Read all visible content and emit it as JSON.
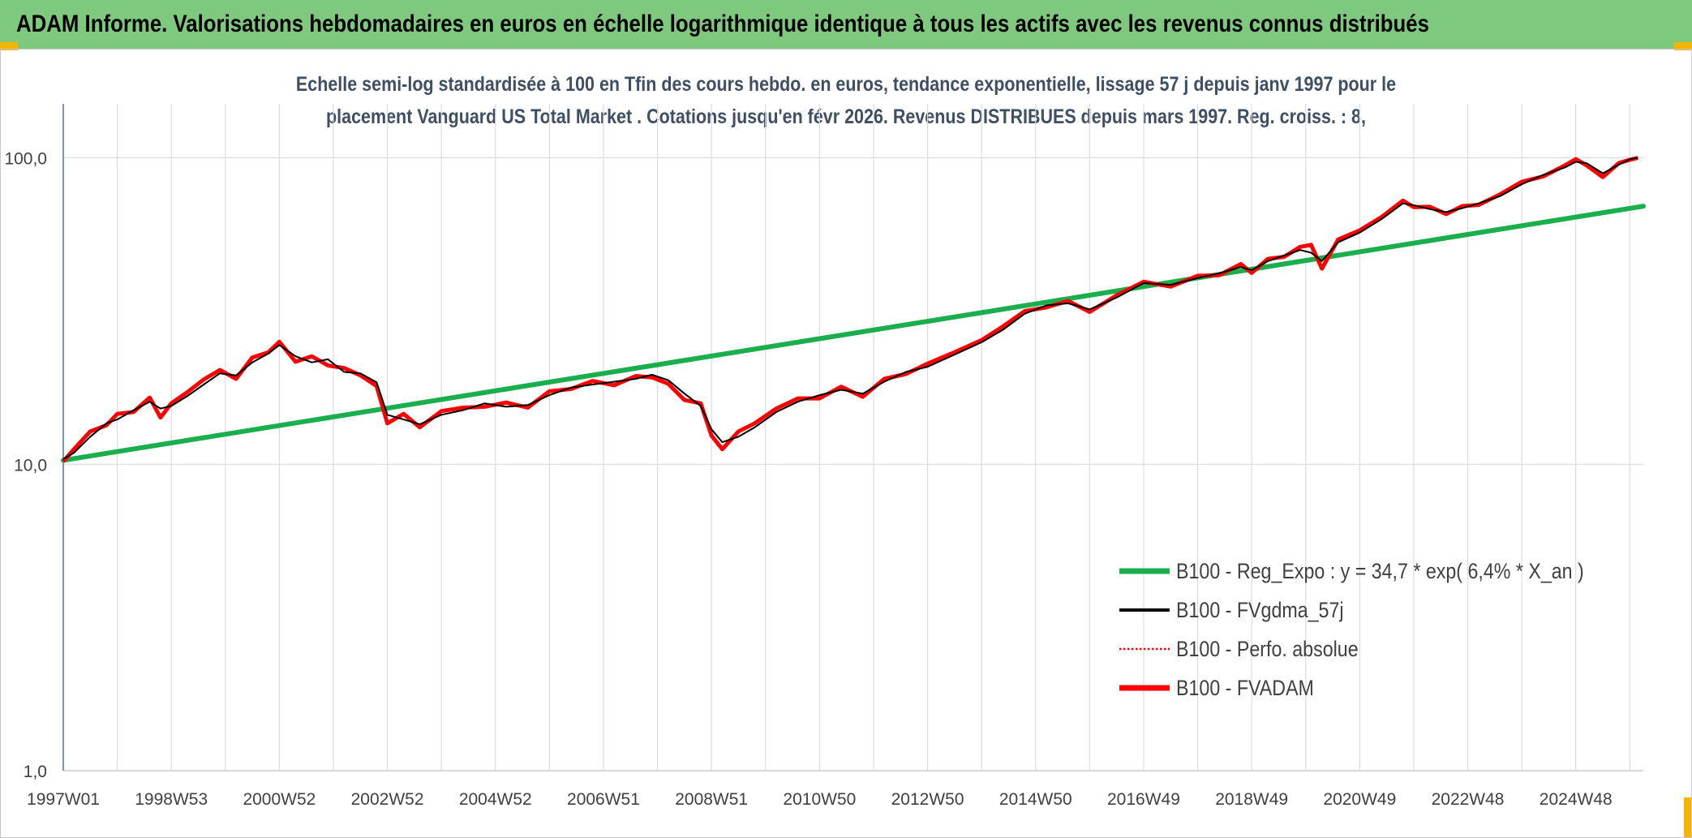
{
  "banner": {
    "title": "ADAM Informe. Valorisations hebdomadaires en euros en échelle logarithmique identique à tous les actifs avec les revenus connus distribués"
  },
  "colors": {
    "banner_bg": "#7fc97f",
    "corner_accent": "#f5b400",
    "subtitle_text": "#3f4f63",
    "regression": "#1aae4c",
    "fvgdma": "#000000",
    "perfo": "#ff0000",
    "fvadam": "#ff0000",
    "grid": "#d9dde3",
    "y_axis_line": "#4472c4"
  },
  "chart_data": {
    "type": "line",
    "title_lines": [
      "Echelle semi-log standardisée à 100 en Tfin des cours hebdo. en euros, tendance exponentielle, lissage 57 j depuis janv 1997 pour le",
      "placement Vanguard US Total Market . Cotations jusqu'en févr 2026. Revenus DISTRIBUES depuis mars 1997. Reg. croiss. : 8,"
    ],
    "y_scale": "log",
    "ylim": [
      1,
      150
    ],
    "y_ticks": [
      {
        "value": 1,
        "label": "1,0"
      },
      {
        "value": 10,
        "label": "10,0"
      },
      {
        "value": 100,
        "label": "100,0"
      }
    ],
    "xlim": [
      1997.0,
      2026.25
    ],
    "x_ticks": [
      {
        "value": 1997.0,
        "label": "1997W01"
      },
      {
        "value": 1999.0,
        "label": "1998W53"
      },
      {
        "value": 2001.0,
        "label": "2000W52"
      },
      {
        "value": 2003.0,
        "label": "2002W52"
      },
      {
        "value": 2005.0,
        "label": "2004W52"
      },
      {
        "value": 2007.0,
        "label": "2006W51"
      },
      {
        "value": 2009.0,
        "label": "2008W51"
      },
      {
        "value": 2011.0,
        "label": "2010W50"
      },
      {
        "value": 2013.0,
        "label": "2012W50"
      },
      {
        "value": 2015.0,
        "label": "2014W50"
      },
      {
        "value": 2017.0,
        "label": "2016W49"
      },
      {
        "value": 2019.0,
        "label": "2018W49"
      },
      {
        "value": 2021.0,
        "label": "2020W49"
      },
      {
        "value": 2023.0,
        "label": "2022W48"
      },
      {
        "value": 2025.0,
        "label": "2024W48"
      }
    ],
    "minor_grid_step_years": 1,
    "legend_placement": "lower-right",
    "series": [
      {
        "name": "B100 - Reg_Expo : y = 34,7 * exp( 6,4% *  X_an )",
        "key": "reg",
        "style": "line",
        "x": [
          1997.0,
          2026.25
        ],
        "y": [
          10.3,
          69.5
        ]
      },
      {
        "name": "B100 - FVgdma_57j",
        "key": "fvgdma",
        "style": "line",
        "x": [
          1997.0,
          1997.2,
          1997.5,
          1997.8,
          1998.0,
          1998.3,
          1998.6,
          1998.8,
          1999.0,
          1999.3,
          1999.6,
          1999.9,
          2000.2,
          2000.5,
          2000.8,
          2001.0,
          2001.3,
          2001.6,
          2001.9,
          2002.2,
          2002.5,
          2002.8,
          2003.0,
          2003.3,
          2003.6,
          2004.0,
          2004.4,
          2004.8,
          2005.2,
          2005.6,
          2006.0,
          2006.4,
          2006.8,
          2007.2,
          2007.6,
          2007.9,
          2008.2,
          2008.5,
          2008.8,
          2009.0,
          2009.2,
          2009.5,
          2009.8,
          2010.2,
          2010.6,
          2011.0,
          2011.4,
          2011.8,
          2012.2,
          2012.6,
          2013.0,
          2013.5,
          2014.0,
          2014.4,
          2014.8,
          2015.2,
          2015.6,
          2016.0,
          2016.5,
          2017.0,
          2017.5,
          2018.0,
          2018.4,
          2018.8,
          2019.0,
          2019.3,
          2019.6,
          2019.9,
          2020.1,
          2020.3,
          2020.6,
          2021.0,
          2021.4,
          2021.8,
          2022.0,
          2022.3,
          2022.6,
          2022.9,
          2023.2,
          2023.6,
          2024.0,
          2024.4,
          2024.8,
          2025.0,
          2025.2,
          2025.5,
          2025.8,
          2026.0,
          2026.15
        ],
        "y": [
          10.4,
          10.9,
          12.3,
          13.6,
          14.0,
          15.0,
          16.0,
          15.2,
          15.5,
          16.7,
          18.2,
          19.8,
          19.5,
          21.5,
          23.0,
          24.5,
          22.5,
          21.5,
          22.0,
          20.0,
          19.8,
          18.5,
          14.5,
          14.0,
          13.5,
          14.5,
          15.0,
          15.8,
          15.4,
          15.6,
          16.8,
          17.8,
          18.2,
          18.6,
          19.0,
          19.6,
          18.8,
          17.0,
          15.5,
          13.0,
          11.8,
          12.3,
          13.2,
          14.8,
          16.0,
          16.8,
          17.5,
          17.0,
          18.6,
          20.0,
          20.8,
          22.8,
          25.0,
          27.5,
          31.0,
          33.0,
          33.5,
          32.0,
          35.0,
          39.0,
          38.5,
          40.5,
          42.0,
          44.0,
          43.0,
          46.0,
          48.0,
          50.0,
          49.0,
          46.0,
          53.0,
          57.0,
          63.0,
          71.0,
          70.0,
          68.0,
          66.5,
          68.5,
          71.0,
          75.0,
          82.0,
          88.0,
          93.0,
          97.0,
          96.0,
          89.0,
          95.0,
          99.0,
          100.0
        ]
      },
      {
        "name": "B100 - Perfo. absolue",
        "key": "perfo",
        "style": "dotted",
        "x": [
          1997.0,
          1997.2,
          1997.5,
          1997.8,
          1998.0,
          1998.3,
          1998.6,
          1998.8,
          1999.0,
          1999.3,
          1999.6,
          1999.9,
          2000.2,
          2000.5,
          2000.8,
          2001.0,
          2001.3,
          2001.6,
          2001.9,
          2002.2,
          2002.5,
          2002.8,
          2003.0,
          2003.3,
          2003.6,
          2004.0,
          2004.4,
          2004.8,
          2005.2,
          2005.6,
          2006.0,
          2006.4,
          2006.8,
          2007.2,
          2007.6,
          2007.9,
          2008.2,
          2008.5,
          2008.8,
          2009.0,
          2009.2,
          2009.5,
          2009.8,
          2010.2,
          2010.6,
          2011.0,
          2011.4,
          2011.8,
          2012.2,
          2012.6,
          2013.0,
          2013.5,
          2014.0,
          2014.4,
          2014.8,
          2015.2,
          2015.6,
          2016.0,
          2016.5,
          2017.0,
          2017.5,
          2018.0,
          2018.4,
          2018.8,
          2019.0,
          2019.3,
          2019.6,
          2019.9,
          2020.1,
          2020.3,
          2020.6,
          2021.0,
          2021.4,
          2021.8,
          2022.0,
          2022.3,
          2022.6,
          2022.9,
          2023.2,
          2023.6,
          2024.0,
          2024.4,
          2024.8,
          2025.0,
          2025.2,
          2025.5,
          2025.8,
          2026.0,
          2026.15
        ],
        "y": [
          10.2,
          11.2,
          12.8,
          13.4,
          14.6,
          14.8,
          16.5,
          14.2,
          15.8,
          17.2,
          18.9,
          20.3,
          19.0,
          22.3,
          23.2,
          25.1,
          21.6,
          22.5,
          21.0,
          20.6,
          19.5,
          18.0,
          13.6,
          14.6,
          13.2,
          14.9,
          15.3,
          15.4,
          15.9,
          15.3,
          17.3,
          17.6,
          18.7,
          18.1,
          19.4,
          19.2,
          18.3,
          16.2,
          15.8,
          12.4,
          11.2,
          12.8,
          13.6,
          15.2,
          16.4,
          16.4,
          17.9,
          16.6,
          19.0,
          19.7,
          21.3,
          23.2,
          25.4,
          28.2,
          31.6,
          32.5,
          34.1,
          31.4,
          35.6,
          39.4,
          38.0,
          41.2,
          41.4,
          45.0,
          42.1,
          46.8,
          47.5,
          51.2,
          52.0,
          43.5,
          54.1,
          58.0,
          64.0,
          72.5,
          69.0,
          69.2,
          65.5,
          69.6,
          70.2,
          76.0,
          83.5,
          87.0,
          94.5,
          99.0,
          94.5,
          86.5,
          96.2,
          98.5,
          100.0
        ]
      },
      {
        "name": "B100 - FVADAM",
        "key": "fvadam",
        "style": "line",
        "x": [
          1997.0,
          1997.2,
          1997.5,
          1997.8,
          1998.0,
          1998.3,
          1998.6,
          1998.8,
          1999.0,
          1999.3,
          1999.6,
          1999.9,
          2000.2,
          2000.5,
          2000.8,
          2001.0,
          2001.3,
          2001.6,
          2001.9,
          2002.2,
          2002.5,
          2002.8,
          2003.0,
          2003.3,
          2003.6,
          2004.0,
          2004.4,
          2004.8,
          2005.2,
          2005.6,
          2006.0,
          2006.4,
          2006.8,
          2007.2,
          2007.6,
          2007.9,
          2008.2,
          2008.5,
          2008.8,
          2009.0,
          2009.2,
          2009.5,
          2009.8,
          2010.2,
          2010.6,
          2011.0,
          2011.4,
          2011.8,
          2012.2,
          2012.6,
          2013.0,
          2013.5,
          2014.0,
          2014.4,
          2014.8,
          2015.2,
          2015.6,
          2016.0,
          2016.5,
          2017.0,
          2017.5,
          2018.0,
          2018.4,
          2018.8,
          2019.0,
          2019.3,
          2019.6,
          2019.9,
          2020.1,
          2020.3,
          2020.6,
          2021.0,
          2021.4,
          2021.8,
          2022.0,
          2022.3,
          2022.6,
          2022.9,
          2023.2,
          2023.6,
          2024.0,
          2024.4,
          2024.8,
          2025.0,
          2025.2,
          2025.5,
          2025.8,
          2026.0,
          2026.15
        ],
        "y": [
          10.2,
          11.2,
          12.8,
          13.4,
          14.6,
          14.8,
          16.5,
          14.2,
          15.8,
          17.2,
          18.9,
          20.3,
          19.0,
          22.3,
          23.2,
          25.1,
          21.6,
          22.5,
          21.0,
          20.6,
          19.5,
          18.0,
          13.6,
          14.6,
          13.2,
          14.9,
          15.3,
          15.4,
          15.9,
          15.3,
          17.3,
          17.6,
          18.7,
          18.1,
          19.4,
          19.2,
          18.3,
          16.2,
          15.8,
          12.4,
          11.2,
          12.8,
          13.6,
          15.2,
          16.4,
          16.4,
          17.9,
          16.6,
          19.0,
          19.7,
          21.3,
          23.2,
          25.4,
          28.2,
          31.6,
          32.5,
          34.1,
          31.4,
          35.6,
          39.4,
          38.0,
          41.2,
          41.4,
          45.0,
          42.1,
          46.8,
          47.5,
          51.2,
          52.0,
          43.5,
          54.1,
          58.0,
          64.0,
          72.5,
          69.0,
          69.2,
          65.5,
          69.6,
          70.2,
          76.0,
          83.5,
          87.0,
          94.5,
          99.0,
          94.5,
          86.5,
          96.2,
          98.5,
          100.0
        ]
      }
    ]
  }
}
